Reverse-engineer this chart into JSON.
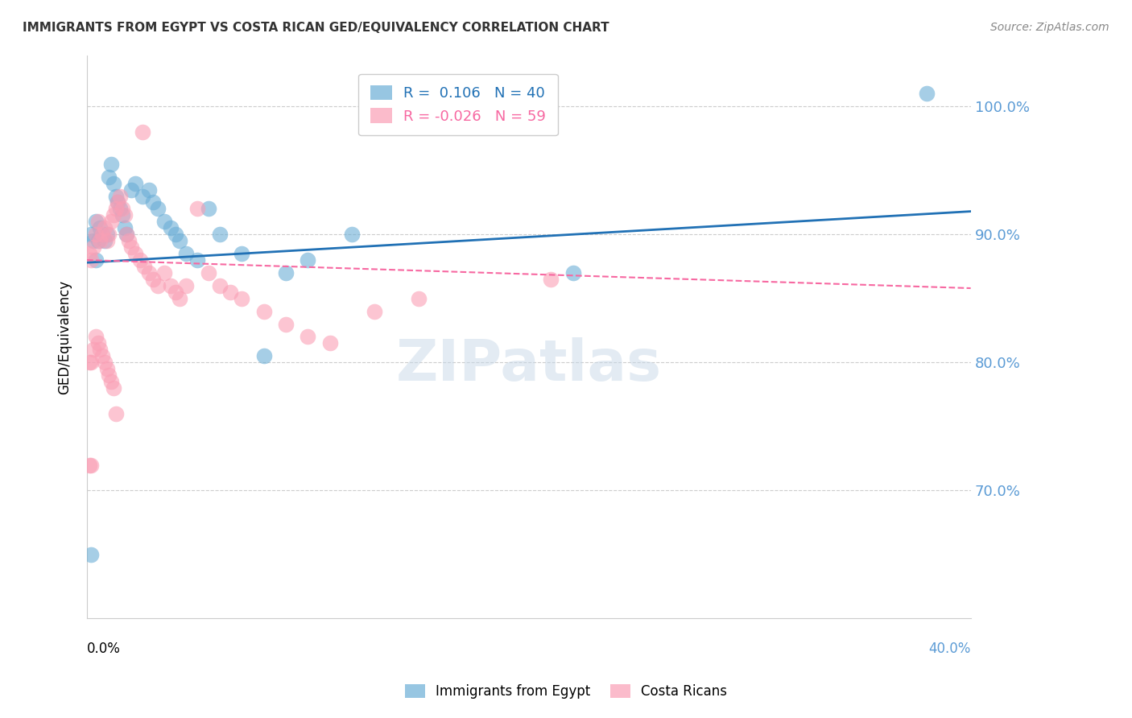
{
  "title": "IMMIGRANTS FROM EGYPT VS COSTA RICAN GED/EQUIVALENCY CORRELATION CHART",
  "source": "Source: ZipAtlas.com",
  "ylabel": "GED/Equivalency",
  "ytick_labels": [
    "100.0%",
    "90.0%",
    "80.0%",
    "70.0%"
  ],
  "ytick_values": [
    1.0,
    0.9,
    0.8,
    0.7
  ],
  "xlim": [
    0.0,
    0.4
  ],
  "ylim": [
    0.6,
    1.04
  ],
  "blue_color": "#6baed6",
  "pink_color": "#fa9fb5",
  "blue_line_color": "#2171b5",
  "pink_line_color": "#f768a1",
  "watermark": "ZIPatlas",
  "blue_scatter_x": [
    0.002,
    0.003,
    0.004,
    0.005,
    0.006,
    0.007,
    0.008,
    0.009,
    0.01,
    0.011,
    0.012,
    0.013,
    0.014,
    0.015,
    0.016,
    0.017,
    0.018,
    0.02,
    0.022,
    0.025,
    0.028,
    0.03,
    0.032,
    0.035,
    0.038,
    0.04,
    0.042,
    0.045,
    0.05,
    0.055,
    0.06,
    0.07,
    0.08,
    0.09,
    0.1,
    0.12,
    0.002,
    0.004,
    0.38,
    0.22
  ],
  "blue_scatter_y": [
    0.9,
    0.895,
    0.91,
    0.895,
    0.905,
    0.9,
    0.895,
    0.9,
    0.945,
    0.955,
    0.94,
    0.93,
    0.925,
    0.92,
    0.915,
    0.905,
    0.9,
    0.935,
    0.94,
    0.93,
    0.935,
    0.925,
    0.92,
    0.91,
    0.905,
    0.9,
    0.895,
    0.885,
    0.88,
    0.92,
    0.9,
    0.885,
    0.805,
    0.87,
    0.88,
    0.9,
    0.65,
    0.88,
    1.01,
    0.87
  ],
  "pink_scatter_x": [
    0.001,
    0.002,
    0.003,
    0.004,
    0.005,
    0.006,
    0.007,
    0.008,
    0.009,
    0.01,
    0.011,
    0.012,
    0.013,
    0.014,
    0.015,
    0.016,
    0.017,
    0.018,
    0.019,
    0.02,
    0.022,
    0.024,
    0.026,
    0.028,
    0.03,
    0.032,
    0.035,
    0.038,
    0.04,
    0.042,
    0.045,
    0.05,
    0.055,
    0.06,
    0.065,
    0.07,
    0.08,
    0.09,
    0.1,
    0.11,
    0.13,
    0.15,
    0.001,
    0.002,
    0.003,
    0.004,
    0.005,
    0.006,
    0.007,
    0.008,
    0.009,
    0.01,
    0.011,
    0.012,
    0.013,
    0.21,
    0.001,
    0.002,
    0.025
  ],
  "pink_scatter_y": [
    0.885,
    0.88,
    0.89,
    0.9,
    0.91,
    0.895,
    0.9,
    0.905,
    0.895,
    0.9,
    0.91,
    0.915,
    0.92,
    0.925,
    0.93,
    0.92,
    0.915,
    0.9,
    0.895,
    0.89,
    0.885,
    0.88,
    0.875,
    0.87,
    0.865,
    0.86,
    0.87,
    0.86,
    0.855,
    0.85,
    0.86,
    0.92,
    0.87,
    0.86,
    0.855,
    0.85,
    0.84,
    0.83,
    0.82,
    0.815,
    0.84,
    0.85,
    0.8,
    0.8,
    0.81,
    0.82,
    0.815,
    0.81,
    0.805,
    0.8,
    0.795,
    0.79,
    0.785,
    0.78,
    0.76,
    0.865,
    0.72,
    0.72,
    0.98
  ],
  "blue_line_x": [
    0.0,
    0.4
  ],
  "blue_line_y": [
    0.878,
    0.918
  ],
  "pink_line_x": [
    0.0,
    0.4
  ],
  "pink_line_y": [
    0.88,
    0.858
  ]
}
